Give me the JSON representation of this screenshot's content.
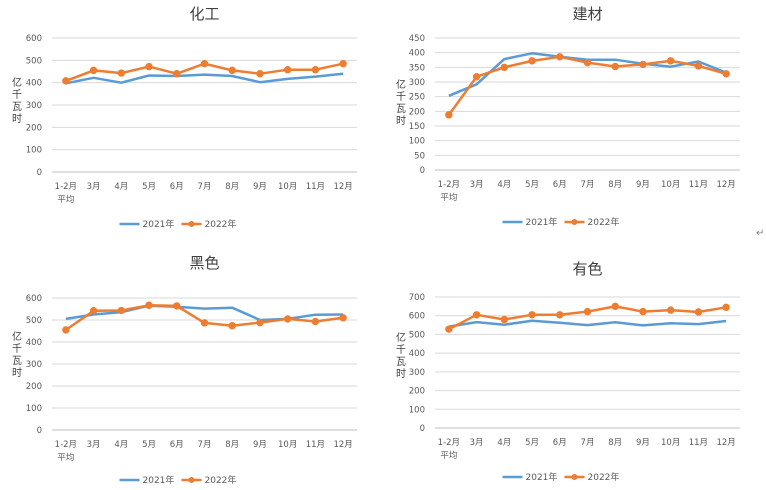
{
  "colors": {
    "s2021": "#5B9BD5",
    "s2022": "#ED7D31"
  },
  "stray_mark": "↵",
  "chart_data": [
    {
      "type": "line",
      "title": "化工",
      "ylabel": "亿千瓦时",
      "categories": [
        "1-2月\n平均",
        "3月",
        "4月",
        "5月",
        "6月",
        "7月",
        "8月",
        "9月",
        "10月",
        "11月",
        "12月"
      ],
      "ylim": [
        0,
        600
      ],
      "yticks": [
        0,
        100,
        200,
        300,
        400,
        500,
        600
      ],
      "grid": true,
      "legend": "bottom",
      "series": [
        {
          "name": "2021年",
          "values": [
            397,
            422,
            400,
            432,
            430,
            436,
            430,
            402,
            417,
            427,
            440
          ]
        },
        {
          "name": "2022年",
          "values": [
            408,
            455,
            443,
            472,
            440,
            485,
            455,
            440,
            458,
            458,
            485
          ]
        }
      ]
    },
    {
      "type": "line",
      "title": "建材",
      "ylabel": "亿千瓦时",
      "categories": [
        "1-2月\n平均",
        "3月",
        "4月",
        "5月",
        "6月",
        "7月",
        "8月",
        "9月",
        "10月",
        "11月",
        "12月"
      ],
      "ylim": [
        0,
        450
      ],
      "yticks": [
        0,
        50,
        100,
        150,
        200,
        250,
        300,
        350,
        400,
        450
      ],
      "grid": true,
      "legend": "bottom",
      "series": [
        {
          "name": "2021年",
          "values": [
            253,
            292,
            378,
            398,
            386,
            376,
            376,
            362,
            352,
            370,
            332
          ]
        },
        {
          "name": "2022年",
          "values": [
            188,
            318,
            350,
            372,
            386,
            366,
            353,
            360,
            372,
            355,
            328
          ]
        }
      ]
    },
    {
      "type": "line",
      "title": "黑色",
      "ylabel": "亿千瓦时",
      "categories": [
        "1-2月\n平均",
        "3月",
        "4月",
        "5月",
        "6月",
        "7月",
        "8月",
        "9月",
        "10月",
        "11月",
        "12月"
      ],
      "ylim": [
        0,
        600
      ],
      "yticks": [
        0,
        100,
        200,
        300,
        400,
        500,
        600
      ],
      "grid": true,
      "legend": "bottom",
      "series": [
        {
          "name": "2021年",
          "values": [
            505,
            525,
            536,
            565,
            560,
            552,
            556,
            500,
            505,
            524,
            525
          ]
        },
        {
          "name": "2022年",
          "values": [
            455,
            542,
            543,
            567,
            564,
            487,
            474,
            488,
            505,
            493,
            510
          ]
        }
      ]
    },
    {
      "type": "line",
      "title": "有色",
      "ylabel": "亿千瓦时",
      "categories": [
        "1-2月\n平均",
        "3月",
        "4月",
        "5月",
        "6月",
        "7月",
        "8月",
        "9月",
        "10月",
        "11月",
        "12月"
      ],
      "ylim": [
        0,
        700
      ],
      "yticks": [
        0,
        100,
        200,
        300,
        400,
        500,
        600,
        700
      ],
      "grid": true,
      "legend": "bottom",
      "series": [
        {
          "name": "2021年",
          "values": [
            542,
            566,
            552,
            573,
            562,
            550,
            565,
            548,
            560,
            555,
            572
          ]
        },
        {
          "name": "2022年",
          "values": [
            528,
            605,
            580,
            605,
            605,
            622,
            650,
            622,
            630,
            620,
            645
          ]
        }
      ]
    }
  ]
}
